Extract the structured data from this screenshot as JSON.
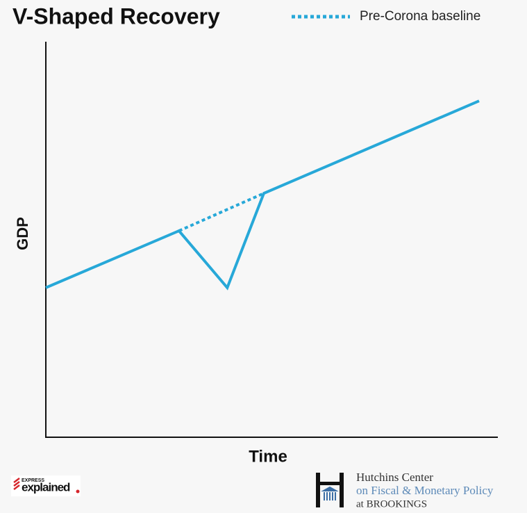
{
  "chart_data": {
    "type": "line",
    "title": "V-Shaped Recovery",
    "x_label": "Time",
    "y_label": "GDP",
    "xlim": [
      0,
      100
    ],
    "ylim": [
      0,
      100
    ],
    "legend": "top-right",
    "series": [
      {
        "color": "#27a8d8",
        "dashed": false,
        "x": [
          0,
          29.5,
          40.2,
          48.3,
          96
        ],
        "values": [
          37.7,
          52.1,
          37.7,
          61.6,
          85
        ]
      },
      {
        "name": "Pre-Corona baseline",
        "color": "#27a8d8",
        "dashed": true,
        "x": [
          29.5,
          48.3
        ],
        "values": [
          52.1,
          61.6
        ]
      }
    ]
  },
  "footer": {
    "brand_top": "EXPRESS",
    "brand": "explained",
    "center_name": "Hutchins Center",
    "center_sub": "on Fiscal & Monetary Policy",
    "center_org": "at BROOKINGS"
  }
}
